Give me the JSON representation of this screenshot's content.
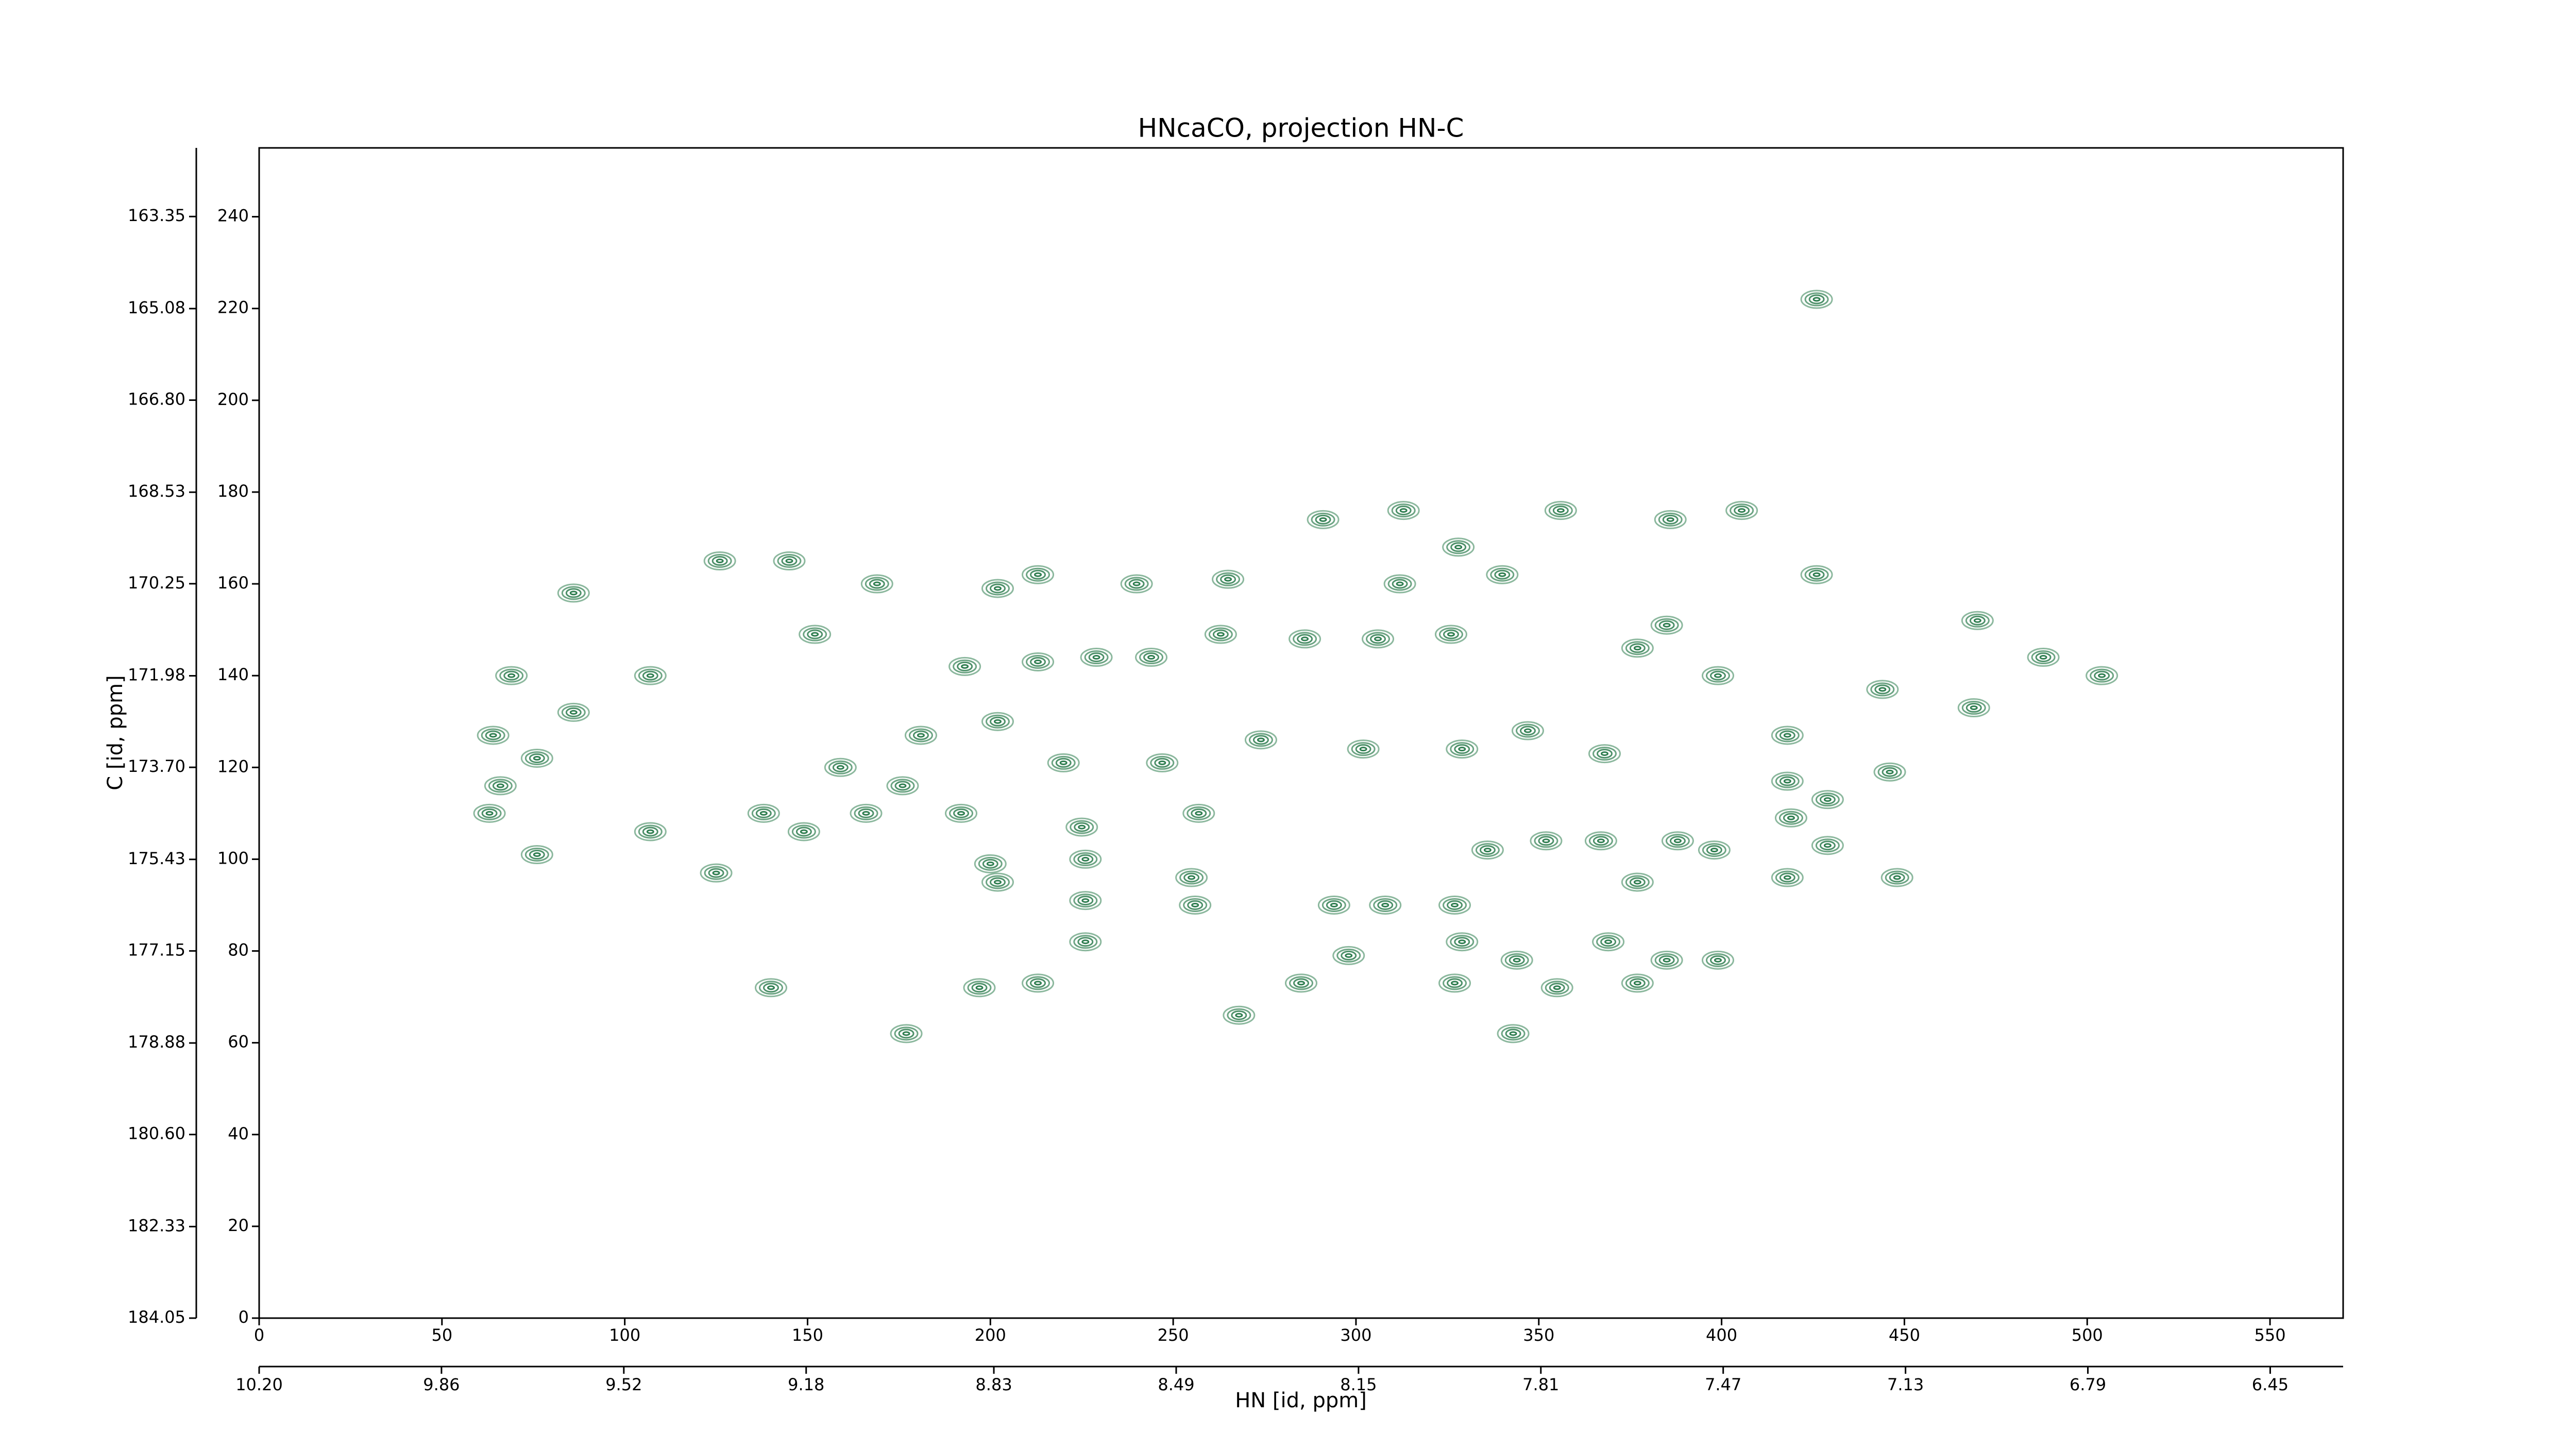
{
  "chart_data": {
    "type": "contour",
    "title": "HNcaCO, projection HN-C",
    "xlabel": "HN [id, ppm]",
    "ylabel": "C [id, ppm]",
    "xlim": [
      0,
      570
    ],
    "ylim": [
      0,
      255
    ],
    "xticks": [
      0,
      50,
      100,
      150,
      200,
      250,
      300,
      350,
      400,
      450,
      500,
      550
    ],
    "yticks": [
      0,
      20,
      40,
      60,
      80,
      100,
      120,
      140,
      160,
      180,
      200,
      220,
      240
    ],
    "x2lim": [
      10.2,
      6.314
    ],
    "x2ticks": [
      {
        "value": 10.2,
        "label": "10.20"
      },
      9.86,
      9.52,
      9.18,
      8.83,
      8.49,
      8.15,
      7.81,
      7.47,
      7.13,
      6.79,
      6.45
    ],
    "y2lim": [
      184.05,
      162.06
    ],
    "y2ticks": [
      184.05,
      182.33,
      {
        "value": 180.6,
        "label": "180.60"
      },
      178.88,
      177.15,
      175.43,
      {
        "value": 173.7,
        "label": "173.70"
      },
      171.98,
      170.25,
      168.53,
      {
        "value": 166.8,
        "label": "166.80"
      },
      165.08,
      163.35
    ],
    "color": "#2e7d4f",
    "x": [
      426,
      405.5,
      356,
      386,
      291,
      313,
      328,
      340,
      312,
      265,
      240,
      213,
      202,
      169,
      145,
      126,
      86,
      152,
      426,
      470,
      488,
      504,
      444,
      399,
      385,
      377,
      326,
      306,
      286,
      263,
      244,
      229,
      213,
      193,
      107,
      86,
      69,
      64,
      66,
      76,
      63,
      76,
      107,
      125,
      138,
      149,
      181,
      202,
      220,
      247,
      274,
      302,
      329,
      347,
      368,
      418,
      418,
      446,
      469,
      429,
      419,
      429,
      448,
      418,
      398,
      388,
      367,
      352,
      336,
      257,
      225,
      192,
      166,
      159,
      176,
      200,
      202,
      226,
      226,
      226,
      255,
      256,
      294,
      308,
      327,
      344,
      298,
      285,
      329,
      369,
      355,
      377,
      385,
      399,
      377,
      343,
      268,
      213,
      197,
      140,
      177,
      327
    ],
    "values": [
      222,
      176,
      176,
      174,
      174,
      176,
      168,
      162,
      160,
      161,
      160,
      162,
      159,
      160,
      165,
      165,
      158,
      149,
      162,
      152,
      144,
      140,
      137,
      140,
      151,
      146,
      149,
      148,
      148,
      149,
      144,
      144,
      143,
      142,
      140,
      132,
      140,
      127,
      116,
      122,
      110,
      101,
      106,
      97,
      110,
      106,
      127,
      130,
      121,
      121,
      126,
      124,
      124,
      128,
      123,
      127,
      117,
      119,
      133,
      113,
      109,
      103,
      96,
      96,
      102,
      104,
      104,
      104,
      102,
      110,
      107,
      110,
      110,
      120,
      116,
      99,
      95,
      100,
      91,
      82,
      96,
      90,
      90,
      90,
      90,
      78,
      79,
      73,
      82,
      82,
      72,
      73,
      78,
      78,
      95,
      62,
      66,
      73,
      72,
      72,
      62,
      73
    ]
  }
}
